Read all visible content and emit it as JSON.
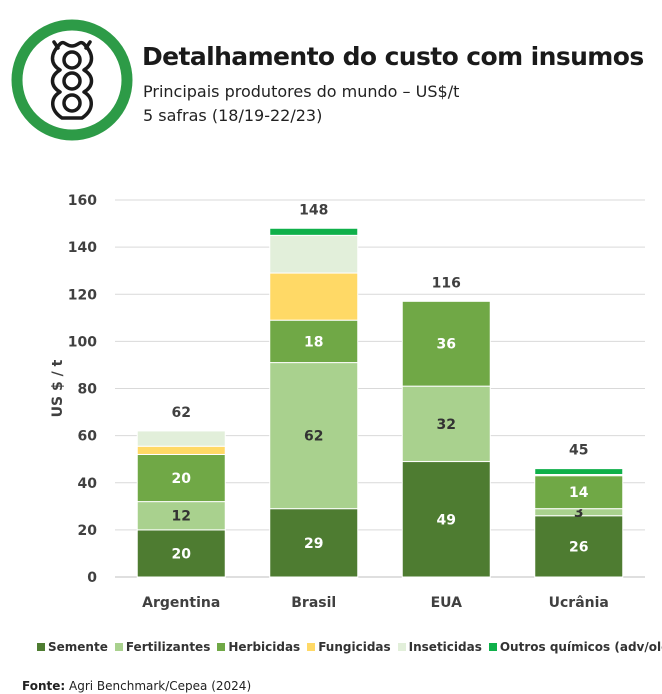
{
  "header": {
    "title": "Detalhamento do custo com insumos",
    "subtitle": "Principais produtores do mundo – US$/t",
    "period": "5 safras (18/19-22/23)"
  },
  "colors": {
    "semente": "#4e7c31",
    "fertilizantes": "#a9d18e",
    "herbicidas": "#70a846",
    "fungicidas": "#ffd966",
    "inseticidas": "#e2efda",
    "outros": "#0fb04a",
    "logo": "#2d9b47"
  },
  "chart_data": {
    "type": "bar",
    "stacked": true,
    "ylabel": "US $ / t",
    "xlabel": "",
    "ylim": [
      0,
      160
    ],
    "yticks": [
      0,
      20,
      40,
      60,
      80,
      100,
      120,
      140,
      160
    ],
    "grid": true,
    "categories": [
      "Argentina",
      "Brasil",
      "EUA",
      "Ucrânia"
    ],
    "totals": [
      62,
      148,
      116,
      45
    ],
    "series": [
      {
        "name": "Semente",
        "key": "semente",
        "values": [
          20,
          29,
          49,
          26
        ],
        "labels": [
          "20",
          "29",
          "49",
          "26"
        ]
      },
      {
        "name": "Fertilizantes",
        "key": "fertilizantes",
        "values": [
          12,
          62,
          32,
          3
        ],
        "labels": [
          "12",
          "62",
          "32",
          "3"
        ]
      },
      {
        "name": "Herbicidas",
        "key": "herbicidas",
        "values": [
          20,
          18,
          36,
          14
        ],
        "labels": [
          "20",
          "18",
          "36",
          "14"
        ]
      },
      {
        "name": "Fungicidas",
        "key": "fungicidas",
        "values": [
          3.5,
          20,
          0,
          0
        ],
        "labels": [
          "",
          "",
          "",
          ""
        ]
      },
      {
        "name": "Inseticidas",
        "key": "inseticidas",
        "values": [
          6.5,
          16,
          0,
          0.5
        ],
        "labels": [
          "",
          "",
          "",
          ""
        ]
      },
      {
        "name": "Outros químicos (adv/oleo)",
        "key": "outros",
        "values": [
          0,
          3,
          0,
          2.5
        ],
        "labels": [
          "",
          "",
          "",
          ""
        ]
      }
    ],
    "legend_position": "bottom"
  },
  "source": {
    "label": "Fonte:",
    "text": " Agri Benchmark/Cepea (2024)"
  }
}
